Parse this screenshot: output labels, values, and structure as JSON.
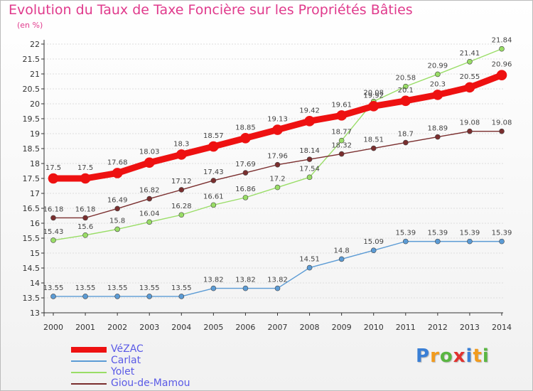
{
  "chart_data": {
    "type": "line",
    "title": "Evolution du Taux de Taxe Foncière sur les Propriétés Bâties",
    "subtitle": "(en %)",
    "xlabel": "",
    "ylabel": "",
    "x": [
      "2000",
      "2001",
      "2002",
      "2003",
      "2004",
      "2005",
      "2006",
      "2007",
      "2008",
      "2009",
      "2010",
      "2011",
      "2012",
      "2013",
      "2014"
    ],
    "ylim": [
      13,
      22
    ],
    "yticks": [
      "13",
      "13.5",
      "14",
      "14.5",
      "15",
      "15.5",
      "16",
      "16.5",
      "17",
      "17.5",
      "18",
      "18.5",
      "19",
      "19.5",
      "20",
      "20.5",
      "21",
      "21.5",
      "22"
    ],
    "legend_position": "bottom-left",
    "series": [
      {
        "name": "VéZAC",
        "color": "#ee1111",
        "values": [
          17.5,
          17.5,
          17.68,
          18.03,
          18.3,
          18.57,
          18.85,
          19.13,
          19.42,
          19.61,
          19.92,
          20.1,
          20.3,
          20.55,
          20.96
        ],
        "labels": [
          "17.5",
          "17.5",
          "17.68",
          "18.03",
          "18.3",
          "18.57",
          "18.85",
          "19.13",
          "19.42",
          "19.61",
          "19.92",
          "20.1",
          "20.3",
          "20.55",
          "20.96"
        ]
      },
      {
        "name": "Carlat",
        "color": "#5b9bd5",
        "values": [
          13.55,
          13.55,
          13.55,
          13.55,
          13.55,
          13.82,
          13.82,
          13.82,
          14.51,
          14.8,
          15.09,
          15.39,
          15.39,
          15.39,
          15.39
        ],
        "labels": [
          "13.55",
          "13.55",
          "13.55",
          "13.55",
          "13.55",
          "13.82",
          "13.82",
          "13.82",
          "14.51",
          "14.8",
          "15.09",
          "15.39",
          "15.39",
          "15.39",
          "15.39"
        ]
      },
      {
        "name": "Yolet",
        "color": "#99dd66",
        "values": [
          15.43,
          15.6,
          15.8,
          16.04,
          16.28,
          16.61,
          16.86,
          17.2,
          17.54,
          18.77,
          20.08,
          20.58,
          20.99,
          21.41,
          21.84
        ],
        "labels": [
          "15.43",
          "15.6",
          "15.8",
          "16.04",
          "16.28",
          "16.61",
          "16.86",
          "17.2",
          "17.54",
          "18.77",
          "20.08",
          "20.58",
          "20.99",
          "21.41",
          "21.84"
        ]
      },
      {
        "name": "Giou-de-Mamou",
        "color": "#7a2e2e",
        "values": [
          16.18,
          16.18,
          16.49,
          16.82,
          17.12,
          17.43,
          17.69,
          17.96,
          18.14,
          18.32,
          18.51,
          18.7,
          18.89,
          19.08,
          19.08
        ],
        "labels": [
          "16.18",
          "16.18",
          "16.49",
          "16.82",
          "17.12",
          "17.43",
          "17.69",
          "17.96",
          "18.14",
          "18.32",
          "18.51",
          "18.7",
          "18.89",
          "19.08",
          "19.08"
        ]
      }
    ]
  },
  "brand": {
    "letters": [
      "P",
      "r",
      "o",
      "x",
      "i",
      "t",
      "i"
    ],
    "colors": [
      "#3a7fd5",
      "#f29b1d",
      "#5ab642",
      "#e0322f",
      "#3a7fd5",
      "#f29b1d",
      "#5ab642"
    ]
  }
}
